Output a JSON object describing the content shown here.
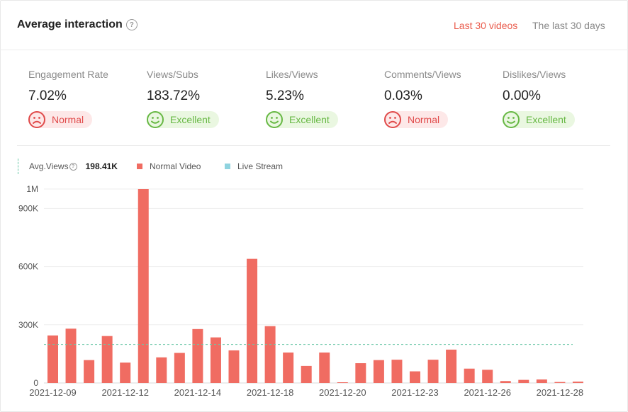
{
  "header": {
    "title": "Average interaction",
    "tabs": [
      {
        "label": "Last 30 videos",
        "active": true
      },
      {
        "label": "The last 30 days",
        "active": false
      }
    ]
  },
  "metrics": [
    {
      "label": "Engagement Rate",
      "value": "7.02%",
      "status": "Normal"
    },
    {
      "label": "Views/Subs",
      "value": "183.72%",
      "status": "Excellent"
    },
    {
      "label": "Likes/Views",
      "value": "5.23%",
      "status": "Excellent"
    },
    {
      "label": "Comments/Views",
      "value": "0.03%",
      "status": "Normal"
    },
    {
      "label": "Dislikes/Views",
      "value": "0.00%",
      "status": "Excellent"
    }
  ],
  "legend": {
    "avg_label": "Avg.Views",
    "avg_value": "198.41K",
    "normal_label": "Normal Video",
    "live_label": "Live Stream"
  },
  "colors": {
    "accent": "#ea5b4c",
    "normal_video": "#f06c62",
    "live_stream": "#8fd3df",
    "avg_line": "#69c8a8",
    "normal_status": "#e04a4a",
    "excellent_status": "#67b844"
  },
  "chart_data": {
    "type": "bar",
    "title": "",
    "xlabel": "",
    "ylabel": "",
    "ylim": [
      0,
      1000000
    ],
    "y_ticks": [
      {
        "value": 0,
        "label": "0"
      },
      {
        "value": 300000,
        "label": "300K"
      },
      {
        "value": 600000,
        "label": "600K"
      },
      {
        "value": 900000,
        "label": "900K"
      },
      {
        "value": 1000000,
        "label": "1M"
      }
    ],
    "x_tick_labels": [
      {
        "index": 0,
        "label": "2021-12-09"
      },
      {
        "index": 4,
        "label": "2021-12-12"
      },
      {
        "index": 8,
        "label": "2021-12-14"
      },
      {
        "index": 12,
        "label": "2021-12-18"
      },
      {
        "index": 16,
        "label": "2021-12-20"
      },
      {
        "index": 20,
        "label": "2021-12-23"
      },
      {
        "index": 24,
        "label": "2021-12-26"
      },
      {
        "index": 28,
        "label": "2021-12-28"
      }
    ],
    "average": 198410,
    "series": [
      {
        "name": "Normal Video",
        "values": [
          245000,
          280000,
          118000,
          242000,
          105000,
          1000000,
          132000,
          155000,
          278000,
          235000,
          168000,
          640000,
          293000,
          157000,
          88000,
          157000,
          3000,
          102000,
          118000,
          120000,
          60000,
          120000,
          172000,
          74000,
          68000,
          10000,
          16000,
          18000,
          5000,
          7000
        ]
      },
      {
        "name": "Live Stream",
        "values": []
      }
    ]
  }
}
